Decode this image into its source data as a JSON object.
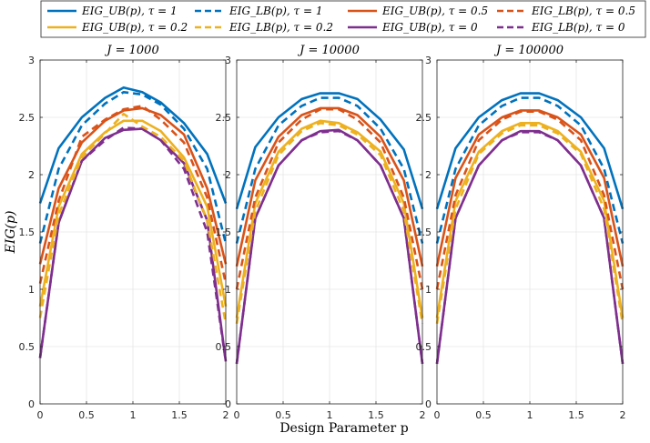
{
  "chart_data": {
    "type": "line",
    "xlabel": "Design Parameter p",
    "ylabel": "EIG(p)",
    "xlim": [
      0,
      2
    ],
    "ylim": [
      0,
      3
    ],
    "x_ticks": [
      "0",
      "0.5",
      "1",
      "1.5",
      "2"
    ],
    "y_ticks": [
      "0",
      "0.5",
      "1",
      "1.5",
      "2",
      "2.5",
      "3"
    ],
    "grid": true,
    "legend_position": "top, outside",
    "colors": {
      "tau1": "#0072BD",
      "tau05": "#D95319",
      "tau02": "#EDB120",
      "tau0": "#7E2F8E"
    },
    "legend": [
      {
        "key": "ub1",
        "label": "EIG_UB(p), τ = 1",
        "color": "#0072BD",
        "dash": "solid"
      },
      {
        "key": "lb1",
        "label": "EIG_LB(p), τ = 1",
        "color": "#0072BD",
        "dash": "dashed"
      },
      {
        "key": "ub05",
        "label": "EIG_UB(p), τ = 0.5",
        "color": "#D95319",
        "dash": "solid"
      },
      {
        "key": "lb05",
        "label": "EIG_LB(p), τ = 0.5",
        "color": "#D95319",
        "dash": "dashed"
      },
      {
        "key": "ub02",
        "label": "EIG_UB(p), τ = 0.2",
        "color": "#EDB120",
        "dash": "solid"
      },
      {
        "key": "lb02",
        "label": "EIG_LB(p), τ = 0.2",
        "color": "#EDB120",
        "dash": "dashed"
      },
      {
        "key": "ub0",
        "label": "EIG_UB(p), τ = 0",
        "color": "#7E2F8E",
        "dash": "solid"
      },
      {
        "key": "lb0",
        "label": "EIG_LB(p), τ = 0",
        "color": "#7E2F8E",
        "dash": "dashed"
      }
    ],
    "x": [
      0,
      0.2,
      0.45,
      0.7,
      0.9,
      1.1,
      1.3,
      1.55,
      1.8,
      2.0
    ],
    "panels": [
      {
        "title": "J = 1000",
        "series": {
          "ub1": [
            1.75,
            2.23,
            2.5,
            2.67,
            2.76,
            2.72,
            2.63,
            2.45,
            2.18,
            1.75
          ],
          "lb1": [
            1.4,
            2.05,
            2.43,
            2.62,
            2.72,
            2.7,
            2.61,
            2.4,
            2.05,
            1.4
          ],
          "ub05": [
            1.22,
            1.88,
            2.28,
            2.47,
            2.56,
            2.58,
            2.52,
            2.35,
            1.88,
            1.22
          ],
          "lb05": [
            1.05,
            1.77,
            2.33,
            2.48,
            2.57,
            2.6,
            2.48,
            2.28,
            1.8,
            1.05
          ],
          "ub02": [
            0.85,
            1.72,
            2.18,
            2.37,
            2.47,
            2.47,
            2.38,
            2.15,
            1.72,
            0.85
          ],
          "lb02": [
            0.75,
            1.65,
            2.15,
            2.36,
            2.53,
            2.42,
            2.33,
            2.12,
            1.6,
            0.7
          ],
          "ub0": [
            0.4,
            1.58,
            2.12,
            2.32,
            2.39,
            2.4,
            2.3,
            2.1,
            1.6,
            0.37
          ],
          "lb0": [
            0.4,
            1.58,
            2.12,
            2.3,
            2.41,
            2.4,
            2.3,
            2.05,
            1.5,
            0.37
          ]
        }
      },
      {
        "title": "J = 10000",
        "series": {
          "ub1": [
            1.7,
            2.24,
            2.5,
            2.66,
            2.71,
            2.71,
            2.66,
            2.48,
            2.22,
            1.7
          ],
          "lb1": [
            1.4,
            2.05,
            2.43,
            2.6,
            2.67,
            2.67,
            2.6,
            2.4,
            2.05,
            1.4
          ],
          "ub05": [
            1.2,
            1.95,
            2.33,
            2.52,
            2.58,
            2.58,
            2.52,
            2.33,
            1.95,
            1.2
          ],
          "lb05": [
            1.0,
            1.8,
            2.28,
            2.48,
            2.57,
            2.57,
            2.48,
            2.28,
            1.8,
            1.0
          ],
          "ub02": [
            0.75,
            1.75,
            2.2,
            2.4,
            2.47,
            2.45,
            2.37,
            2.2,
            1.75,
            0.75
          ],
          "lb02": [
            0.7,
            1.68,
            2.17,
            2.38,
            2.45,
            2.43,
            2.35,
            2.17,
            1.68,
            0.7
          ],
          "ub0": [
            0.35,
            1.62,
            2.08,
            2.3,
            2.38,
            2.39,
            2.3,
            2.08,
            1.62,
            0.35
          ],
          "lb0": [
            0.35,
            1.62,
            2.08,
            2.3,
            2.37,
            2.38,
            2.3,
            2.08,
            1.62,
            0.35
          ]
        }
      },
      {
        "title": "J = 100000",
        "series": {
          "ub1": [
            1.7,
            2.23,
            2.5,
            2.65,
            2.71,
            2.71,
            2.65,
            2.5,
            2.23,
            1.7
          ],
          "lb1": [
            1.4,
            2.05,
            2.43,
            2.6,
            2.67,
            2.67,
            2.6,
            2.43,
            2.05,
            1.4
          ],
          "ub05": [
            1.2,
            1.97,
            2.35,
            2.5,
            2.56,
            2.56,
            2.5,
            2.35,
            1.97,
            1.2
          ],
          "lb05": [
            1.0,
            1.82,
            2.3,
            2.48,
            2.55,
            2.55,
            2.48,
            2.3,
            1.82,
            1.0
          ],
          "ub02": [
            0.75,
            1.77,
            2.2,
            2.38,
            2.45,
            2.45,
            2.38,
            2.2,
            1.77,
            0.75
          ],
          "lb02": [
            0.7,
            1.7,
            2.18,
            2.36,
            2.43,
            2.43,
            2.36,
            2.18,
            1.7,
            0.7
          ],
          "ub0": [
            0.35,
            1.62,
            2.08,
            2.3,
            2.38,
            2.38,
            2.3,
            2.08,
            1.62,
            0.35
          ],
          "lb0": [
            0.35,
            1.62,
            2.08,
            2.3,
            2.37,
            2.37,
            2.3,
            2.08,
            1.62,
            0.35
          ]
        }
      }
    ]
  }
}
